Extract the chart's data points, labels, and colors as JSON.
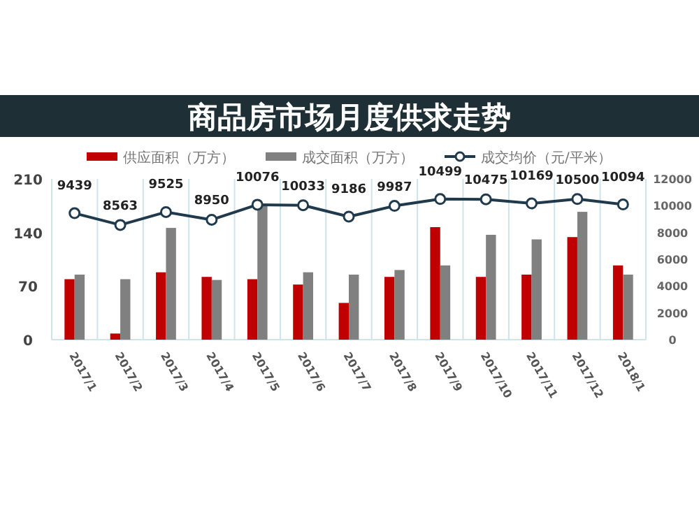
{
  "chart_data": {
    "type": "bar",
    "title": "商品房市场月度供求走势",
    "categories": [
      "2017/1",
      "2017/2",
      "2017/3",
      "2017/4",
      "2017/5",
      "2017/6",
      "2017/7",
      "2017/8",
      "2017/9",
      "2017/10",
      "2017/11",
      "2017/12",
      "2018/1"
    ],
    "series": [
      {
        "name": "供应面积（万方）",
        "color": "#c00000",
        "values": [
          79,
          8,
          88,
          82,
          79,
          72,
          48,
          82,
          147,
          82,
          85,
          134,
          97
        ]
      },
      {
        "name": "成交面积（万方）",
        "color": "#808080",
        "values": [
          85,
          79,
          146,
          78,
          176,
          88,
          85,
          91,
          97,
          137,
          131,
          167,
          85
        ]
      },
      {
        "name": "成交均价（元/平米）",
        "type": "line",
        "axis": "y2",
        "color": "#1f3a4d",
        "marker": "circle",
        "values": [
          9439,
          8563,
          9525,
          8950,
          10076,
          10033,
          9186,
          9987,
          10499,
          10475,
          10169,
          10500,
          10094
        ],
        "value_labels": [
          "9439",
          "8563",
          "9525",
          "8950",
          "10076",
          "10033",
          "9186",
          "9987",
          "10499",
          "10475",
          "10169",
          "10500",
          "10094"
        ]
      }
    ],
    "ylim": [
      0,
      210
    ],
    "yticks": [
      0,
      70,
      140,
      210
    ],
    "y2lim": [
      0,
      12000
    ],
    "y2ticks": [
      0,
      2000,
      4000,
      6000,
      8000,
      10000,
      12000
    ],
    "grid": "x",
    "legend": "top"
  }
}
